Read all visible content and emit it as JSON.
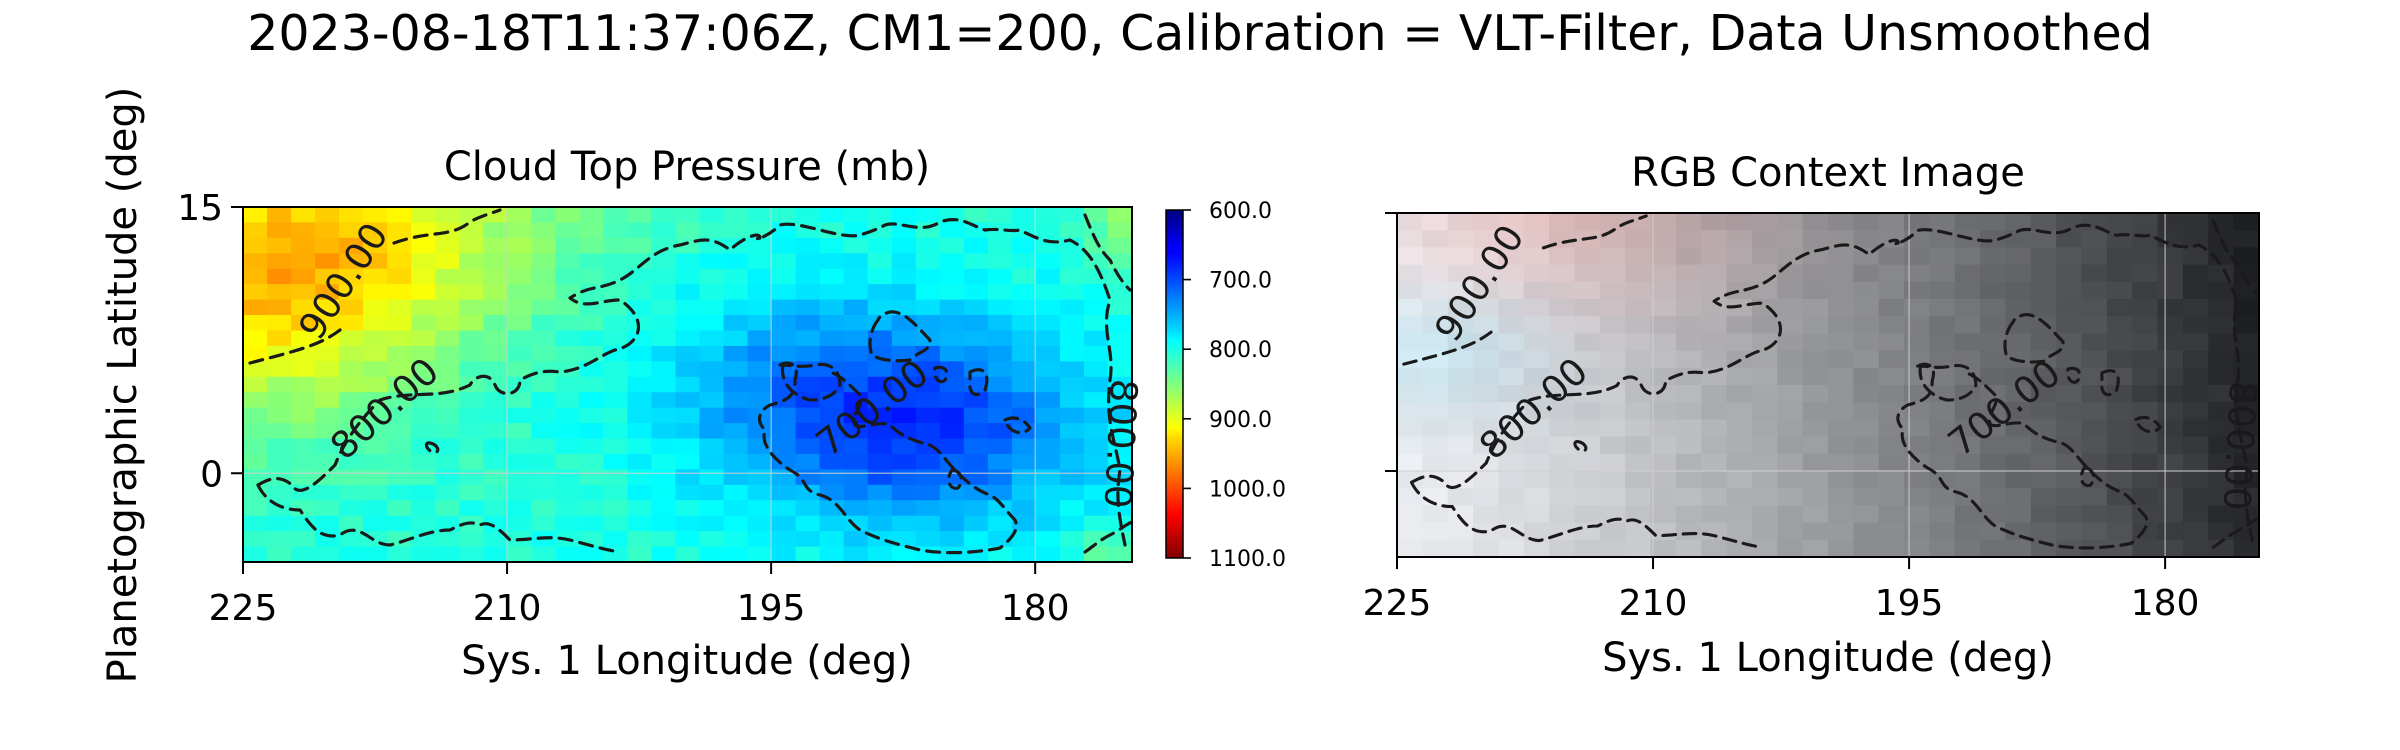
{
  "figure": {
    "suptitle": "2023-08-18T11:37:06Z, CM1=200, Calibration = VLT-Filter, Data Unsmoothed",
    "ylabel": "Planetographic Latitude (deg)"
  },
  "chart_data": [
    {
      "type": "heatmap",
      "title": "Cloud Top Pressure (mb)",
      "xlabel": "Sys. 1 Longitude (deg)",
      "ylabel": "Planetographic Latitude (deg)",
      "xlim": [
        225,
        174.5
      ],
      "ylim": [
        -5,
        15
      ],
      "xticks": [
        225,
        210,
        195,
        180
      ],
      "xtick_labels": [
        "225",
        "210",
        "195",
        "180"
      ],
      "yticks": [
        15,
        0
      ],
      "ytick_labels": [
        "15",
        "0"
      ],
      "grid": true,
      "colormap": "jet",
      "colorbar": {
        "min": 600,
        "max": 1100,
        "orientation": "reversed (600 at top, 1100 at bottom)",
        "ticks": [
          "600.0",
          "700.0",
          "800.0",
          "900.0",
          "1000.0",
          "1100.0"
        ]
      },
      "contour_labels": [
        "900.00",
        "800.00",
        "700.00",
        "800.00"
      ],
      "contour_style": "dashed black"
    },
    {
      "type": "heatmap",
      "title": "RGB Context Image",
      "xlabel": "Sys. 1 Longitude (deg)",
      "xlim": [
        225,
        174.5
      ],
      "ylim": [
        -5,
        15
      ],
      "xticks": [
        225,
        210,
        195,
        180
      ],
      "xtick_labels": [
        "225",
        "210",
        "195",
        "180"
      ],
      "yticks": [
        15,
        0
      ],
      "grid": true,
      "contour_labels": [
        "900.00",
        "800.00",
        "700.00",
        "800.00"
      ],
      "contour_style": "dashed black"
    }
  ]
}
